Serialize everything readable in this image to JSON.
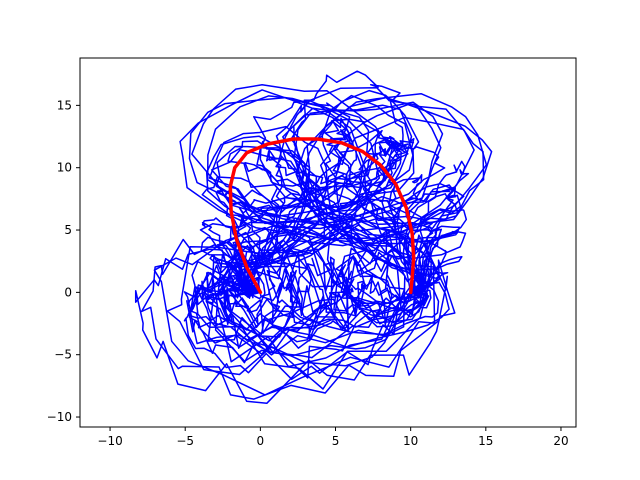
{
  "chart_data": {
    "type": "line",
    "title": "",
    "xlabel": "",
    "ylabel": "",
    "xlim": [
      -12,
      21
    ],
    "ylim": [
      -10.8,
      18.8
    ],
    "x_ticks": [
      -10,
      -5,
      0,
      5,
      10,
      15,
      20
    ],
    "y_ticks": [
      -10,
      -5,
      0,
      5,
      10,
      15
    ],
    "x_tick_labels": [
      "−10",
      "−5",
      "0",
      "5",
      "10",
      "15",
      "20"
    ],
    "y_tick_labels": [
      "−10",
      "−5",
      "0",
      "5",
      "10",
      "15"
    ],
    "grid": false,
    "legend": "none",
    "series": [
      {
        "role": "noisy sample trajectories",
        "color": "#0000ff",
        "trajectory_count": 40,
        "start": [
          0,
          0
        ],
        "end": [
          10,
          0
        ]
      },
      {
        "role": "mean trajectory",
        "color": "#ff0000",
        "x": [
          0,
          -0.9,
          -1.6,
          -1.95,
          -2.0,
          -1.7,
          -0.9,
          0.5,
          2.2,
          3.8,
          5.4,
          6.8,
          8.0,
          9.0,
          9.7,
          10.1,
          10.2,
          10.1,
          10.0
        ],
        "y": [
          0,
          2.0,
          4.3,
          6.5,
          8.5,
          10.0,
          11.2,
          11.9,
          12.3,
          12.3,
          12.0,
          11.3,
          10.2,
          8.7,
          6.8,
          4.7,
          2.8,
          1.2,
          0
        ]
      }
    ]
  }
}
